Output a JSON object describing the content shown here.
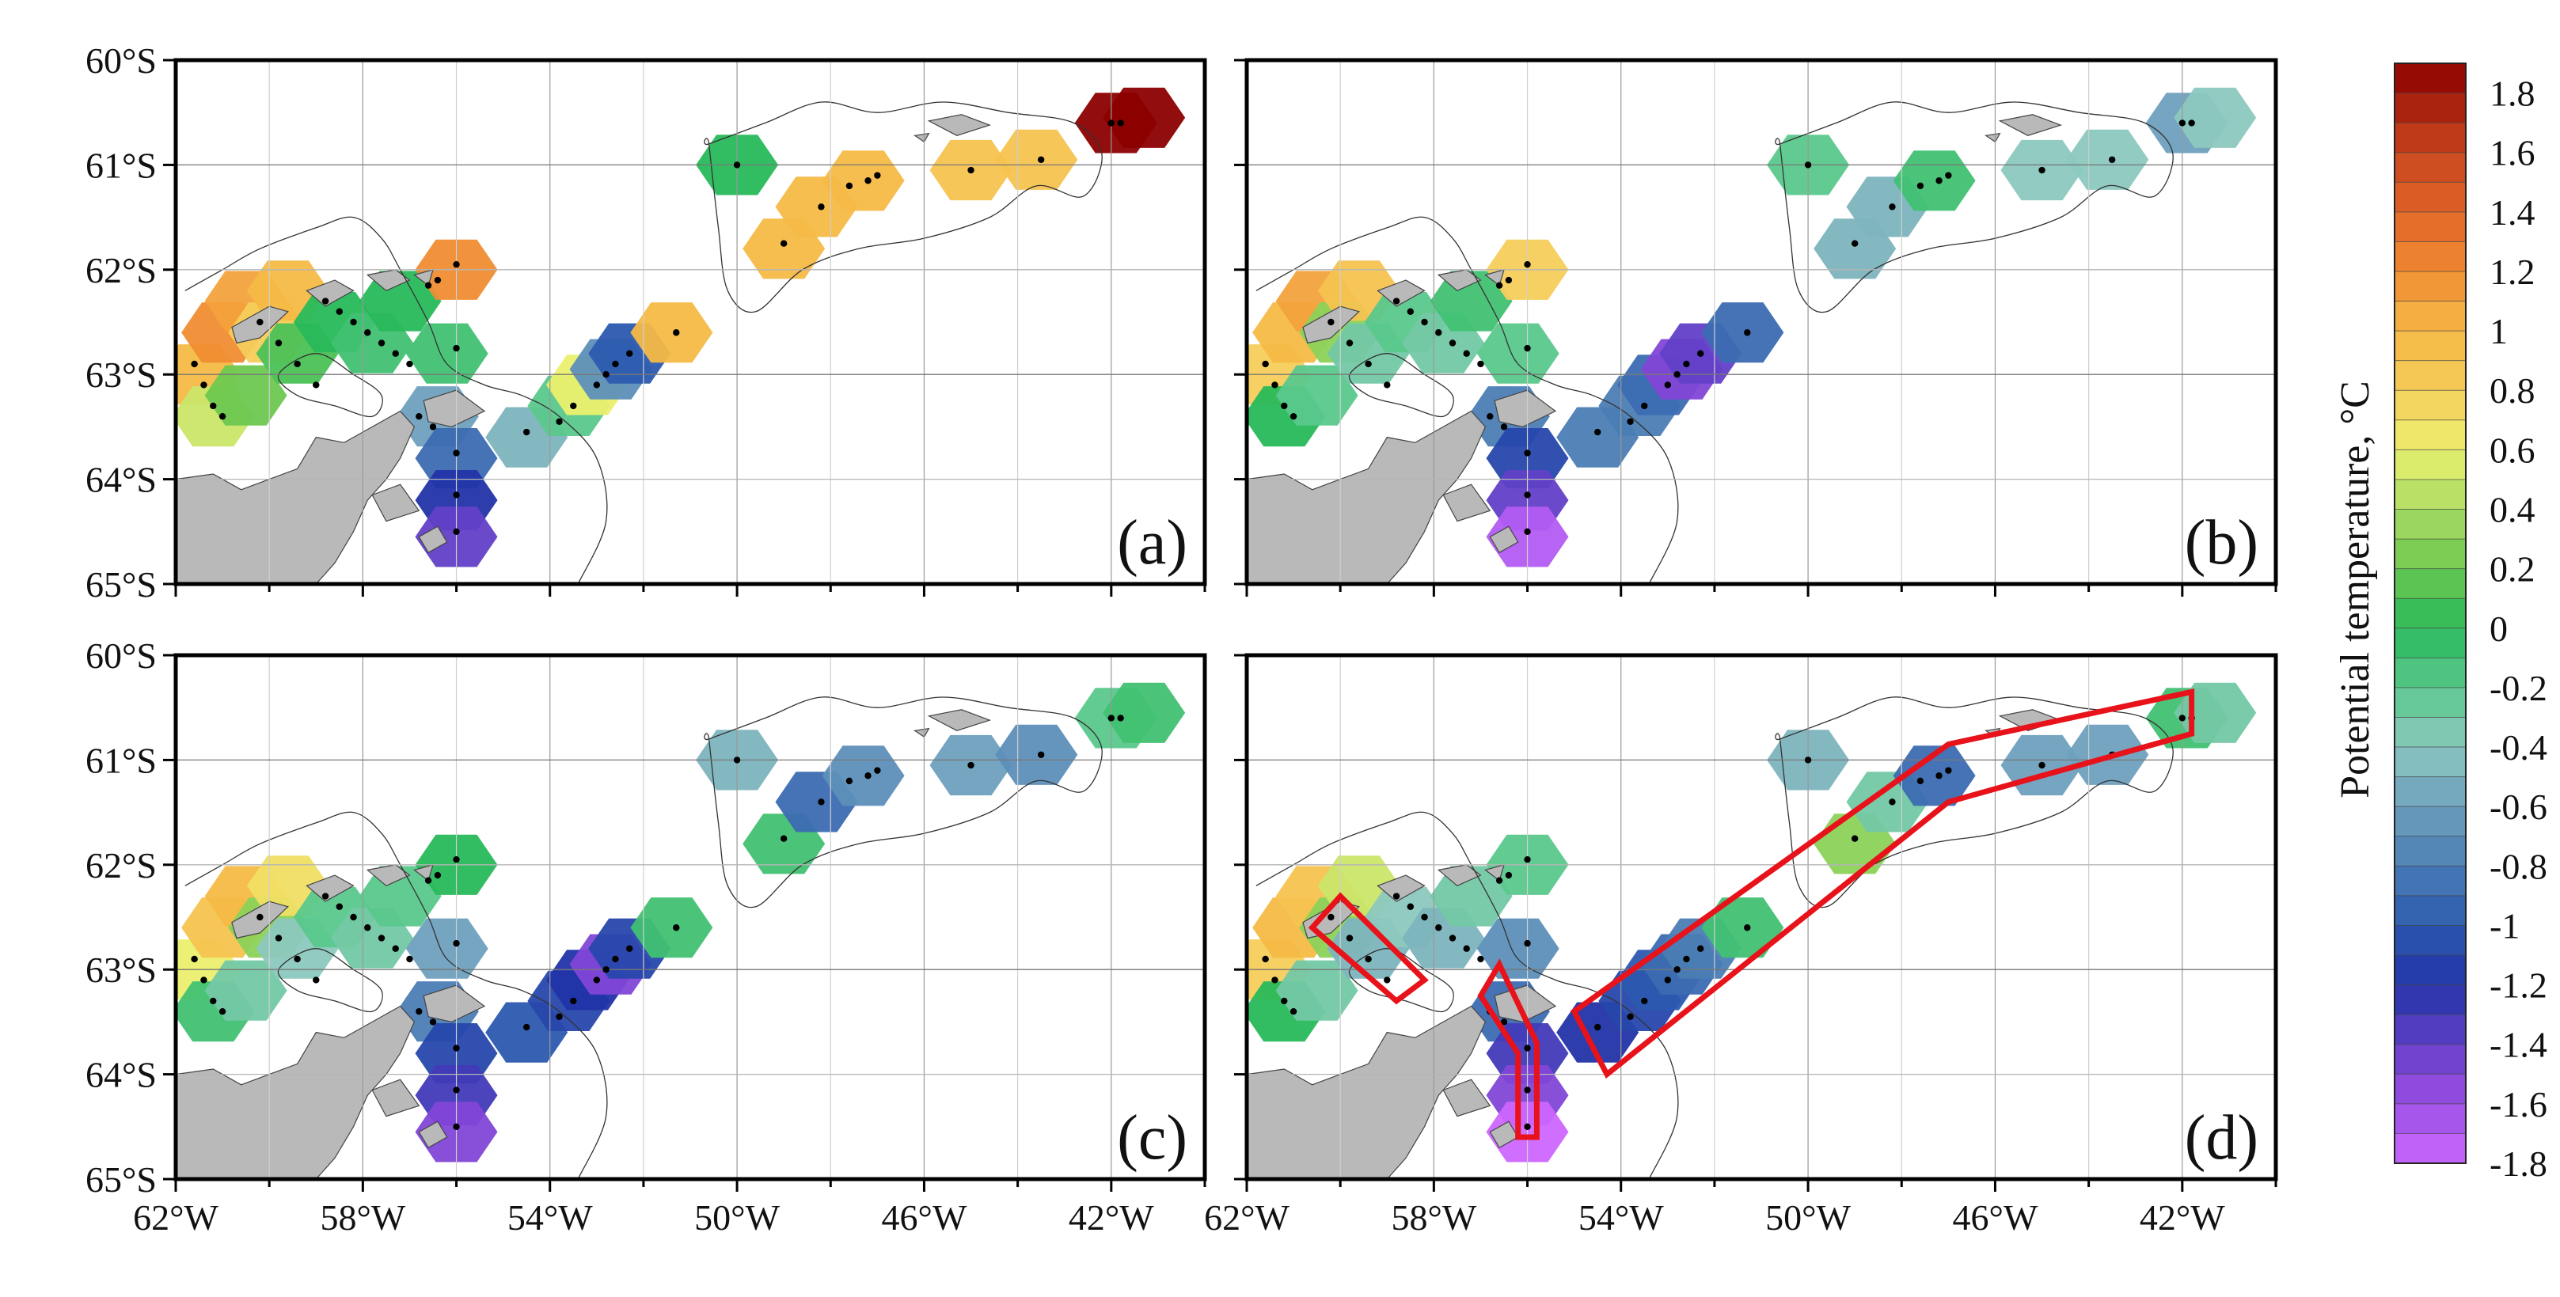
{
  "figure": {
    "lat_labels": [
      "60°S",
      "61°S",
      "62°S",
      "63°S",
      "64°S",
      "65°S"
    ],
    "lon_labels": [
      "62°W",
      "58°W",
      "54°W",
      "50°W",
      "46°W",
      "42°W"
    ],
    "lat_range": [
      -65,
      -60
    ],
    "lon_range": [
      -62,
      -40
    ],
    "panels": [
      {
        "id": "a",
        "letter": "(a)"
      },
      {
        "id": "b",
        "letter": "(b)"
      },
      {
        "id": "c",
        "letter": "(c)"
      },
      {
        "id": "d",
        "letter": "(d)"
      }
    ]
  },
  "colorbar": {
    "title": "Potential temperature, °C",
    "min": -1.8,
    "max": 1.9,
    "step": 0.1,
    "labels": [
      "1.8",
      "1.6",
      "1.4",
      "1.2",
      "1",
      "0.8",
      "0.6",
      "0.4",
      "0.2",
      "0",
      "-0.2",
      "-0.4",
      "-0.6",
      "-0.8",
      "-1",
      "-1.2",
      "-1.4",
      "-1.6",
      "-1.8"
    ]
  },
  "stations": [
    [
      -61.6,
      -62.9
    ],
    [
      -61.4,
      -63.1
    ],
    [
      -61.2,
      -63.3
    ],
    [
      -61.0,
      -63.4
    ],
    [
      -60.2,
      -62.5
    ],
    [
      -59.8,
      -62.7
    ],
    [
      -59.4,
      -62.9
    ],
    [
      -59.0,
      -63.1
    ],
    [
      -58.8,
      -62.3
    ],
    [
      -58.5,
      -62.4
    ],
    [
      -58.2,
      -62.5
    ],
    [
      -57.9,
      -62.6
    ],
    [
      -57.6,
      -62.7
    ],
    [
      -57.3,
      -62.8
    ],
    [
      -57.0,
      -62.9
    ],
    [
      -56.6,
      -62.15
    ],
    [
      -56.4,
      -62.1
    ],
    [
      -56.0,
      -61.95
    ],
    [
      -56.0,
      -62.75
    ],
    [
      -56.8,
      -63.4
    ],
    [
      -56.5,
      -63.5
    ],
    [
      -56.0,
      -63.75
    ],
    [
      -56.0,
      -64.15
    ],
    [
      -56.0,
      -64.5
    ],
    [
      -54.5,
      -63.55
    ],
    [
      -53.8,
      -63.45
    ],
    [
      -53.5,
      -63.3
    ],
    [
      -53.0,
      -63.1
    ],
    [
      -52.8,
      -63.0
    ],
    [
      -52.6,
      -62.9
    ],
    [
      -52.3,
      -62.8
    ],
    [
      -51.3,
      -62.6
    ],
    [
      -50.0,
      -61.0
    ],
    [
      -49.0,
      -61.75
    ],
    [
      -48.2,
      -61.4
    ],
    [
      -47.6,
      -61.2
    ],
    [
      -47.2,
      -61.15
    ],
    [
      -47.0,
      -61.1
    ],
    [
      -45.0,
      -61.05
    ],
    [
      -43.5,
      -60.95
    ],
    [
      -42.0,
      -60.6
    ],
    [
      -41.8,
      -60.6
    ]
  ],
  "interest_regions": [
    {
      "name": "bransfield-box",
      "points": [
        [
          -60.6,
          -62.6
        ],
        [
          -60.0,
          -62.3
        ],
        [
          -58.2,
          -63.1
        ],
        [
          -58.8,
          -63.3
        ]
      ]
    },
    {
      "name": "antarctic-sound-box",
      "points": [
        [
          -57.0,
          -63.25
        ],
        [
          -56.6,
          -62.95
        ],
        [
          -55.8,
          -63.7
        ],
        [
          -55.8,
          -64.6
        ],
        [
          -56.2,
          -64.6
        ],
        [
          -56.2,
          -63.8
        ]
      ]
    },
    {
      "name": "weddell-scotia-box",
      "points": [
        [
          -55.0,
          -63.4
        ],
        [
          -47.0,
          -60.85
        ],
        [
          -41.8,
          -60.35
        ],
        [
          -41.8,
          -60.75
        ],
        [
          -47.0,
          -61.4
        ],
        [
          -54.3,
          -64.0
        ]
      ]
    }
  ],
  "fields": {
    "a": [
      [
        -61.5,
        -63.0,
        1.0
      ],
      [
        -61.0,
        -62.6,
        1.2
      ],
      [
        -60.5,
        -62.3,
        1.1
      ],
      [
        -60.0,
        -62.6,
        0.8
      ],
      [
        -59.6,
        -62.2,
        1.0
      ],
      [
        -61.2,
        -63.4,
        0.5
      ],
      [
        -60.5,
        -63.2,
        0.2
      ],
      [
        -59.4,
        -62.8,
        0.1
      ],
      [
        -58.6,
        -62.5,
        0.0
      ],
      [
        -57.8,
        -62.7,
        -0.1
      ],
      [
        -57.2,
        -62.3,
        0.0
      ],
      [
        -56.0,
        -62.0,
        1.2
      ],
      [
        -56.2,
        -62.8,
        -0.1
      ],
      [
        -56.4,
        -63.4,
        -0.6
      ],
      [
        -56.0,
        -63.8,
        -0.9
      ],
      [
        -56.0,
        -64.2,
        -1.2
      ],
      [
        -56.0,
        -64.55,
        -1.4
      ],
      [
        -54.5,
        -63.6,
        -0.5
      ],
      [
        -53.6,
        -63.3,
        -0.2
      ],
      [
        -53.2,
        -63.1,
        0.6
      ],
      [
        -52.7,
        -62.95,
        -0.7
      ],
      [
        -52.3,
        -62.8,
        -1.0
      ],
      [
        -51.4,
        -62.6,
        1.0
      ],
      [
        -50.0,
        -61.0,
        0.0
      ],
      [
        -49.0,
        -61.8,
        1.0
      ],
      [
        -48.3,
        -61.4,
        1.0
      ],
      [
        -47.3,
        -61.15,
        1.0
      ],
      [
        -45.0,
        -61.05,
        0.9
      ],
      [
        -43.6,
        -60.95,
        0.9
      ],
      [
        -41.9,
        -60.6,
        1.9
      ],
      [
        -41.3,
        -60.55,
        1.9
      ]
    ],
    "b": [
      [
        -61.5,
        -63.0,
        0.8
      ],
      [
        -61.0,
        -62.6,
        1.0
      ],
      [
        -60.5,
        -62.3,
        1.1
      ],
      [
        -60.0,
        -62.6,
        0.3
      ],
      [
        -59.6,
        -62.2,
        0.9
      ],
      [
        -61.2,
        -63.4,
        0.0
      ],
      [
        -60.5,
        -63.2,
        -0.2
      ],
      [
        -59.4,
        -62.8,
        -0.3
      ],
      [
        -58.6,
        -62.5,
        -0.2
      ],
      [
        -57.8,
        -62.7,
        -0.3
      ],
      [
        -57.2,
        -62.3,
        -0.1
      ],
      [
        -56.0,
        -62.0,
        0.8
      ],
      [
        -56.2,
        -62.8,
        -0.2
      ],
      [
        -56.4,
        -63.4,
        -0.8
      ],
      [
        -56.0,
        -63.8,
        -1.1
      ],
      [
        -56.0,
        -64.2,
        -1.4
      ],
      [
        -56.0,
        -64.55,
        -1.7
      ],
      [
        -54.5,
        -63.6,
        -0.8
      ],
      [
        -53.6,
        -63.3,
        -0.8
      ],
      [
        -53.2,
        -63.1,
        -0.9
      ],
      [
        -52.7,
        -62.95,
        -1.5
      ],
      [
        -52.3,
        -62.8,
        -1.4
      ],
      [
        -51.4,
        -62.6,
        -0.9
      ],
      [
        -50.0,
        -61.0,
        -0.2
      ],
      [
        -49.0,
        -61.8,
        -0.5
      ],
      [
        -48.3,
        -61.4,
        -0.5
      ],
      [
        -47.3,
        -61.15,
        -0.1
      ],
      [
        -45.0,
        -61.05,
        -0.4
      ],
      [
        -43.6,
        -60.95,
        -0.4
      ],
      [
        -41.9,
        -60.6,
        -0.6
      ],
      [
        -41.3,
        -60.55,
        -0.4
      ]
    ],
    "c": [
      [
        -61.5,
        -63.0,
        0.6
      ],
      [
        -61.0,
        -62.6,
        0.9
      ],
      [
        -60.5,
        -62.3,
        1.0
      ],
      [
        -60.0,
        -62.6,
        0.3
      ],
      [
        -59.6,
        -62.2,
        0.7
      ],
      [
        -61.2,
        -63.4,
        -0.1
      ],
      [
        -60.5,
        -63.2,
        -0.3
      ],
      [
        -59.4,
        -62.8,
        -0.4
      ],
      [
        -58.6,
        -62.5,
        -0.2
      ],
      [
        -57.8,
        -62.7,
        -0.3
      ],
      [
        -57.2,
        -62.3,
        -0.2
      ],
      [
        -56.0,
        -62.0,
        0.0
      ],
      [
        -56.2,
        -62.8,
        -0.6
      ],
      [
        -56.4,
        -63.4,
        -0.8
      ],
      [
        -56.0,
        -63.8,
        -1.1
      ],
      [
        -56.0,
        -64.2,
        -1.3
      ],
      [
        -56.0,
        -64.55,
        -1.5
      ],
      [
        -54.5,
        -63.6,
        -1.0
      ],
      [
        -53.6,
        -63.3,
        -1.1
      ],
      [
        -53.2,
        -63.1,
        -1.2
      ],
      [
        -52.7,
        -62.95,
        -1.5
      ],
      [
        -52.3,
        -62.8,
        -1.1
      ],
      [
        -51.4,
        -62.6,
        -0.1
      ],
      [
        -50.0,
        -61.0,
        -0.5
      ],
      [
        -49.0,
        -61.8,
        -0.1
      ],
      [
        -48.3,
        -61.4,
        -0.9
      ],
      [
        -47.3,
        -61.15,
        -0.7
      ],
      [
        -45.0,
        -61.05,
        -0.6
      ],
      [
        -43.6,
        -60.95,
        -0.7
      ],
      [
        -41.9,
        -60.6,
        -0.2
      ],
      [
        -41.3,
        -60.55,
        -0.1
      ]
    ],
    "d": [
      [
        -61.5,
        -63.0,
        0.8
      ],
      [
        -61.0,
        -62.6,
        1.0
      ],
      [
        -60.5,
        -62.3,
        0.9
      ],
      [
        -60.0,
        -62.6,
        0.3
      ],
      [
        -59.6,
        -62.2,
        0.5
      ],
      [
        -61.2,
        -63.4,
        0.0
      ],
      [
        -60.5,
        -63.2,
        -0.3
      ],
      [
        -59.4,
        -62.8,
        -0.5
      ],
      [
        -58.6,
        -62.5,
        -0.4
      ],
      [
        -57.8,
        -62.7,
        -0.5
      ],
      [
        -57.2,
        -62.3,
        -0.3
      ],
      [
        -56.0,
        -62.0,
        -0.2
      ],
      [
        -56.2,
        -62.8,
        -0.7
      ],
      [
        -56.4,
        -63.4,
        -0.9
      ],
      [
        -56.0,
        -63.8,
        -1.3
      ],
      [
        -56.0,
        -64.2,
        -1.5
      ],
      [
        -56.0,
        -64.55,
        -1.8
      ],
      [
        -54.5,
        -63.6,
        -1.2
      ],
      [
        -53.6,
        -63.3,
        -1.1
      ],
      [
        -53.2,
        -63.1,
        -1.0
      ],
      [
        -52.7,
        -62.95,
        -0.9
      ],
      [
        -52.3,
        -62.8,
        -0.8
      ],
      [
        -51.4,
        -62.6,
        -0.1
      ],
      [
        -50.0,
        -61.0,
        -0.5
      ],
      [
        -49.0,
        -61.8,
        0.3
      ],
      [
        -48.3,
        -61.4,
        -0.3
      ],
      [
        -47.3,
        -61.15,
        -0.9
      ],
      [
        -45.0,
        -61.05,
        -0.6
      ],
      [
        -43.6,
        -60.95,
        -0.6
      ],
      [
        -41.9,
        -60.6,
        -0.1
      ],
      [
        -41.3,
        -60.55,
        -0.3
      ]
    ]
  }
}
